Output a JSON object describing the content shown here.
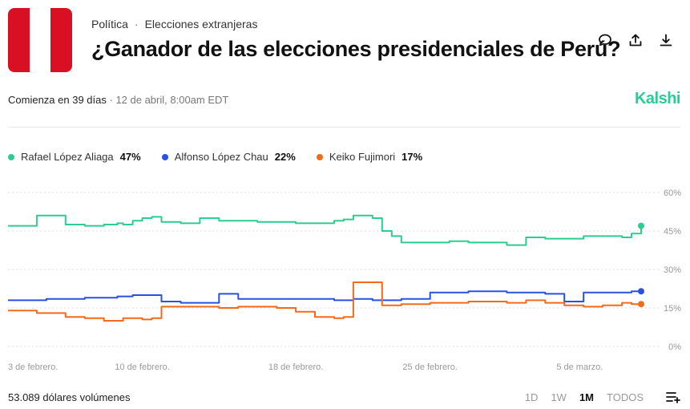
{
  "header": {
    "category": "Política",
    "subcategory": "Elecciones extranjeras",
    "title": "¿Ganador de las elecciones presidenciales de Perú?",
    "flag_colors": [
      "#d91023",
      "#ffffff",
      "#d91023"
    ],
    "actions": [
      {
        "name": "comment-icon"
      },
      {
        "name": "share-icon"
      },
      {
        "name": "download-icon"
      }
    ]
  },
  "meta": {
    "starts": "Comienza en 39 días",
    "date": "12 de abril, 8:00am EDT",
    "brand": "Kalshi",
    "brand_color": "#28cc95"
  },
  "legend": [
    {
      "name": "Rafael López Aliaga",
      "pct": "47%",
      "color": "#2ecc8f"
    },
    {
      "name": "Alfonso López Chau",
      "pct": "22%",
      "color": "#2952e3"
    },
    {
      "name": "Keiko Fujimori",
      "pct": "17%",
      "color": "#f26b1d"
    }
  ],
  "chart_data": {
    "type": "line",
    "x_tick_labels": [
      "3 de febrero.",
      "10 de febrero.",
      "18 de febrero.",
      "25 de febrero.",
      "5 de marzo."
    ],
    "y_ticks": [
      "60%",
      "45%",
      "30%",
      "15%",
      "0%"
    ],
    "ylim": [
      0,
      60
    ],
    "y_side": "right",
    "grid": "dotted-horizontal",
    "x_days": [
      0,
      1,
      1.5,
      2,
      2.5,
      3,
      4,
      5,
      5.7,
      6,
      6.5,
      7,
      7.5,
      8,
      9,
      10,
      11,
      12,
      13,
      14,
      15,
      16,
      17,
      17.5,
      18,
      19,
      19.5,
      20,
      20.5,
      21,
      22,
      23,
      24,
      25,
      26,
      27,
      28,
      29,
      30,
      31,
      32,
      32.5,
      33
    ],
    "series": [
      {
        "name": "Rafael López Aliaga",
        "color": "#2ecc8f",
        "values": [
          47,
          47,
          51,
          51,
          51,
          47.5,
          47,
          47.5,
          48,
          47.5,
          49,
          50,
          50.5,
          48.5,
          48,
          50,
          49,
          49,
          48.5,
          48.5,
          48,
          48,
          49,
          49.5,
          51,
          50,
          45,
          43,
          40.5,
          40.5,
          40.5,
          41,
          40.5,
          40.5,
          39.5,
          42.5,
          42,
          42,
          43,
          43,
          42.5,
          44,
          47
        ]
      },
      {
        "name": "Alfonso López Chau",
        "color": "#2952e3",
        "values": [
          18,
          18,
          18,
          18.5,
          18.5,
          18.5,
          19,
          19,
          19.5,
          19.5,
          20,
          20,
          20,
          17.5,
          17,
          17,
          20.5,
          18.5,
          18.5,
          18.5,
          18.5,
          18.5,
          18,
          18,
          18.5,
          18,
          18,
          18,
          18.5,
          18.5,
          21,
          21,
          21.5,
          21.5,
          21,
          21,
          20.5,
          17.5,
          21,
          21,
          21,
          21.5,
          21.5
        ]
      },
      {
        "name": "Keiko Fujimori",
        "color": "#f26b1d",
        "values": [
          14,
          14,
          13,
          13,
          13,
          11.5,
          11,
          10,
          10,
          11,
          11,
          10.5,
          11,
          15.5,
          15.5,
          15.5,
          15,
          15.5,
          15.5,
          15,
          13.5,
          11.5,
          11,
          11.5,
          25,
          25,
          16,
          16,
          16.5,
          16.5,
          17,
          17,
          17.5,
          17.5,
          17,
          18,
          17,
          16,
          15.5,
          16,
          17,
          16.5,
          16.5
        ]
      }
    ]
  },
  "footer": {
    "volume": "53.089 dólares volúmenes",
    "ranges": [
      "1D",
      "1W",
      "1M",
      "TODOS"
    ],
    "active_range": "1M"
  }
}
